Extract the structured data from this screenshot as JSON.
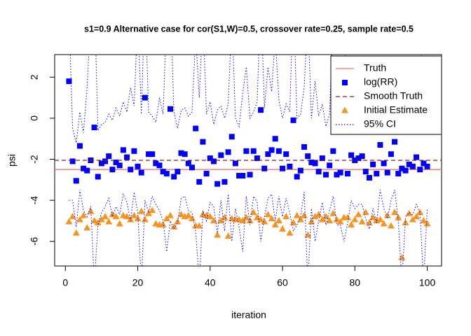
{
  "chart_data": {
    "type": "scatter",
    "title": "s1=0.9 Alternative case for cor(S1,W)=0.5, crossover rate=0.25, sample rate=0.5",
    "x_label": "iteration",
    "y_label": "psi",
    "xlim": [
      -2.96,
      103.96
    ],
    "ylim": [
      -7.2,
      3.1
    ],
    "xticks": [
      0,
      20,
      40,
      60,
      80,
      100
    ],
    "yticks": [
      -6,
      -4,
      -2,
      0,
      2
    ],
    "legend": "top-right",
    "x": [
      1,
      2,
      3,
      4,
      5,
      6,
      7,
      8,
      9,
      10,
      11,
      12,
      13,
      14,
      15,
      16,
      17,
      18,
      19,
      20,
      21,
      22,
      23,
      24,
      25,
      26,
      27,
      28,
      29,
      30,
      31,
      32,
      33,
      34,
      35,
      36,
      37,
      38,
      39,
      40,
      41,
      42,
      43,
      44,
      45,
      46,
      47,
      48,
      49,
      50,
      51,
      52,
      53,
      54,
      55,
      56,
      57,
      58,
      59,
      60,
      61,
      62,
      63,
      64,
      65,
      66,
      67,
      68,
      69,
      70,
      71,
      72,
      73,
      74,
      75,
      76,
      77,
      78,
      79,
      80,
      81,
      82,
      83,
      84,
      85,
      86,
      87,
      88,
      89,
      90,
      91,
      92,
      93,
      94,
      95,
      96,
      97,
      98,
      99,
      100
    ],
    "series": [
      {
        "name": "Truth",
        "style": "hline",
        "linestyle": "solid",
        "color": "#ff6f6f",
        "value": -2.5
      },
      {
        "name": "log(RR)",
        "style": "points",
        "marker": "square",
        "color": "#0000ff",
        "values": [
          1.8,
          -2.1,
          -3.05,
          -1.35,
          -2.45,
          -2.55,
          -2.05,
          -0.45,
          -2.85,
          -2.2,
          -2.1,
          -1.85,
          -2.5,
          -2.15,
          -2.3,
          -1.55,
          -1.9,
          -2.5,
          -1.6,
          -2.35,
          -2.65,
          1.0,
          -1.75,
          -1.75,
          -2.2,
          -2.3,
          -2.6,
          -2.7,
          0.45,
          -2.85,
          -2.6,
          -1.7,
          -1.75,
          -2.2,
          -2.4,
          -0.5,
          -3.1,
          -1.15,
          -2.7,
          -1.95,
          -2.1,
          -3.2,
          -1.8,
          -3.1,
          -1.65,
          -0.9,
          -2.2,
          -2.8,
          -2.8,
          -1.6,
          -2.75,
          -1.6,
          -1.95,
          0.4,
          -2.45,
          -1.75,
          -1.55,
          -1.0,
          -1.6,
          -2.45,
          -1.75,
          -2.35,
          -0.1,
          -2.85,
          -2.55,
          -1.4,
          -1.85,
          -2.15,
          -2.2,
          -2.6,
          -1.95,
          -2.75,
          -2.3,
          -1.6,
          -2.75,
          -2.65,
          -0.6,
          -2.7,
          -1.8,
          -2.05,
          -1.95,
          -1.85,
          -2.6,
          -2.9,
          -2.25,
          -2.7,
          -1.3,
          -2.2,
          -2.65,
          -1.75,
          -1.15,
          -2.7,
          -2.45,
          -2.55,
          -2.25,
          -2.35,
          -1.9,
          -2.5,
          -2.2,
          -2.35
        ]
      },
      {
        "name": "Smooth Truth",
        "style": "hline",
        "linestyle": "dashed",
        "color": "#8b1a1a",
        "value": -2.05
      },
      {
        "name": "Initial Estimate",
        "style": "points",
        "marker": "triangle",
        "color": "#f7931e",
        "values": [
          -5.05,
          -4.8,
          -5.6,
          -4.95,
          -4.75,
          -5.35,
          -4.55,
          -5.0,
          -5.1,
          -4.95,
          -4.8,
          -5.05,
          -4.7,
          -4.8,
          -5.15,
          -4.75,
          -4.8,
          -4.95,
          -4.75,
          -4.9,
          -4.55,
          -4.95,
          -4.65,
          -4.5,
          -5.15,
          -5.2,
          -5.2,
          -4.9,
          -4.75,
          -5.3,
          -5.05,
          -4.7,
          -4.8,
          -4.75,
          -4.9,
          -5.25,
          -5.25,
          -4.7,
          -4.75,
          -4.8,
          -5.0,
          -5.7,
          -5.0,
          -4.85,
          -5.75,
          -4.9,
          -4.95,
          -4.95,
          -5.0,
          -4.85,
          -5.0,
          -4.6,
          -4.85,
          -4.95,
          -5.05,
          -4.7,
          -4.9,
          -5.2,
          -5.0,
          -5.4,
          -4.8,
          -5.6,
          -5.1,
          -4.75,
          -4.95,
          -4.75,
          -5.7,
          -5.05,
          -4.8,
          -4.7,
          -4.95,
          -4.8,
          -5.0,
          -4.65,
          -4.95,
          -5.05,
          -4.85,
          -4.85,
          -5.2,
          -4.95,
          -4.7,
          -5.05,
          -4.6,
          -5.1,
          -4.85,
          -5.0,
          -4.95,
          -5.15,
          -4.75,
          -5.25,
          -4.6,
          -4.85,
          -6.8,
          -5.1,
          -4.65,
          -4.95,
          -4.8,
          -4.6,
          -5.0,
          -5.15
        ]
      },
      {
        "name": "95% CI",
        "style": "interval",
        "linestyle": "dotted",
        "color": "#0000ff",
        "upper": [
          5,
          -0.5,
          -1.2,
          0.3,
          -0.7,
          1.5,
          5,
          6,
          -0.6,
          -0.3,
          -0.2,
          0.2,
          -0.1,
          0.5,
          0.1,
          0.8,
          0.3,
          1.5,
          0.6,
          5,
          0.2,
          6,
          0.3,
          0.1,
          -0.2,
          1.0,
          0.2,
          5,
          6,
          0.3,
          -0.5,
          0.4,
          0.5,
          0.1,
          0.3,
          4,
          1.0,
          5,
          0.2,
          0.8,
          -0.3,
          0.4,
          0.6,
          0.0,
          0.7,
          5,
          0.0,
          -0.4,
          1.2,
          2.5,
          0.0,
          0.3,
          0.8,
          6,
          0.5,
          2.5,
          1.3,
          4,
          0.9,
          0.0,
          0.7,
          0.3,
          6,
          0.0,
          0.2,
          1.5,
          5,
          0.0,
          1.8,
          0.1,
          0.7,
          -0.4,
          0.2,
          5,
          0.3,
          0.1,
          5,
          0.3,
          1.0,
          0.6,
          0.8,
          1.1,
          0.4,
          -0.3,
          0.2,
          0.0,
          2.0,
          0.2,
          0.4,
          0.6,
          2.5,
          0.0,
          0.5,
          0.3,
          1.2,
          0.4,
          0.3,
          1.3,
          5,
          0.6
        ],
        "lower": [
          -4,
          -4,
          -5.3,
          -3.5,
          -4.5,
          -4.8,
          -4.3,
          -8,
          -5.2,
          -4.6,
          -4.3,
          -3.9,
          -4.8,
          -4.3,
          -4.7,
          -3.7,
          -4.1,
          -5.0,
          -3.6,
          -4.6,
          -8,
          -4,
          -4.6,
          -3.8,
          -4.2,
          -4.5,
          -5,
          -6.5,
          -5,
          -5.4,
          -5.1,
          -3.9,
          -3.8,
          -4.5,
          -4.6,
          -5.5,
          -8,
          -4.5,
          -5,
          -4.1,
          -4.3,
          -5.6,
          -4.0,
          -5.5,
          -3.7,
          -6,
          -4.4,
          -5.3,
          -6.5,
          -3.8,
          -5.2,
          -3.8,
          -4.1,
          -6,
          -4.8,
          -3.9,
          -3.7,
          -5,
          -3.8,
          -4.8,
          -3.9,
          -4.6,
          -5.5,
          -5.2,
          -4.8,
          -3.6,
          -8,
          -4.4,
          -6,
          -5.0,
          -4.1,
          -5.2,
          -4.5,
          -3.8,
          -5.2,
          -5.2,
          -6,
          -5.1,
          -4.0,
          -4.4,
          -4.2,
          -4.2,
          -4.9,
          -5.4,
          -4.4,
          -5.1,
          -3.5,
          -4.4,
          -4.9,
          -4.0,
          -3.5,
          -5.0,
          -8,
          -4.8,
          -4.6,
          -4.7,
          -4.2,
          -4.6,
          -8,
          -4.4
        ]
      }
    ]
  }
}
